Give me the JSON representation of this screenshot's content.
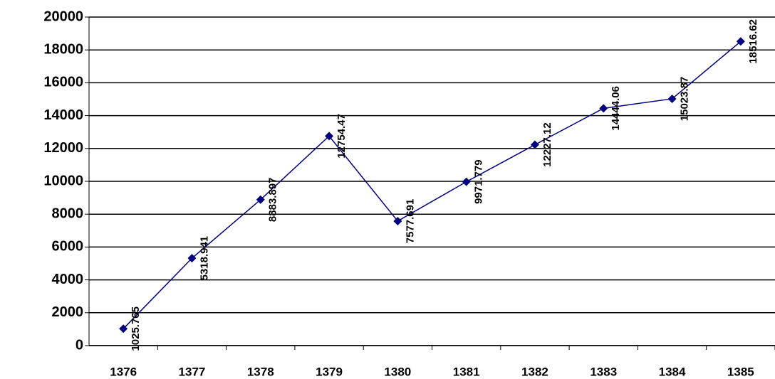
{
  "chart_data": {
    "type": "line",
    "categories": [
      "1376",
      "1377",
      "1378",
      "1379",
      "1380",
      "1381",
      "1382",
      "1383",
      "1384",
      "1385"
    ],
    "values": [
      1025.765,
      5318.941,
      8883.897,
      12754.47,
      7577.691,
      9971.779,
      12227.12,
      14444.06,
      15023.87,
      18516.62
    ],
    "color": "#000080",
    "ylim": [
      0,
      20000
    ],
    "yticks": [
      0,
      2000,
      4000,
      6000,
      8000,
      10000,
      12000,
      14000,
      16000,
      18000,
      20000
    ],
    "grid": true
  }
}
